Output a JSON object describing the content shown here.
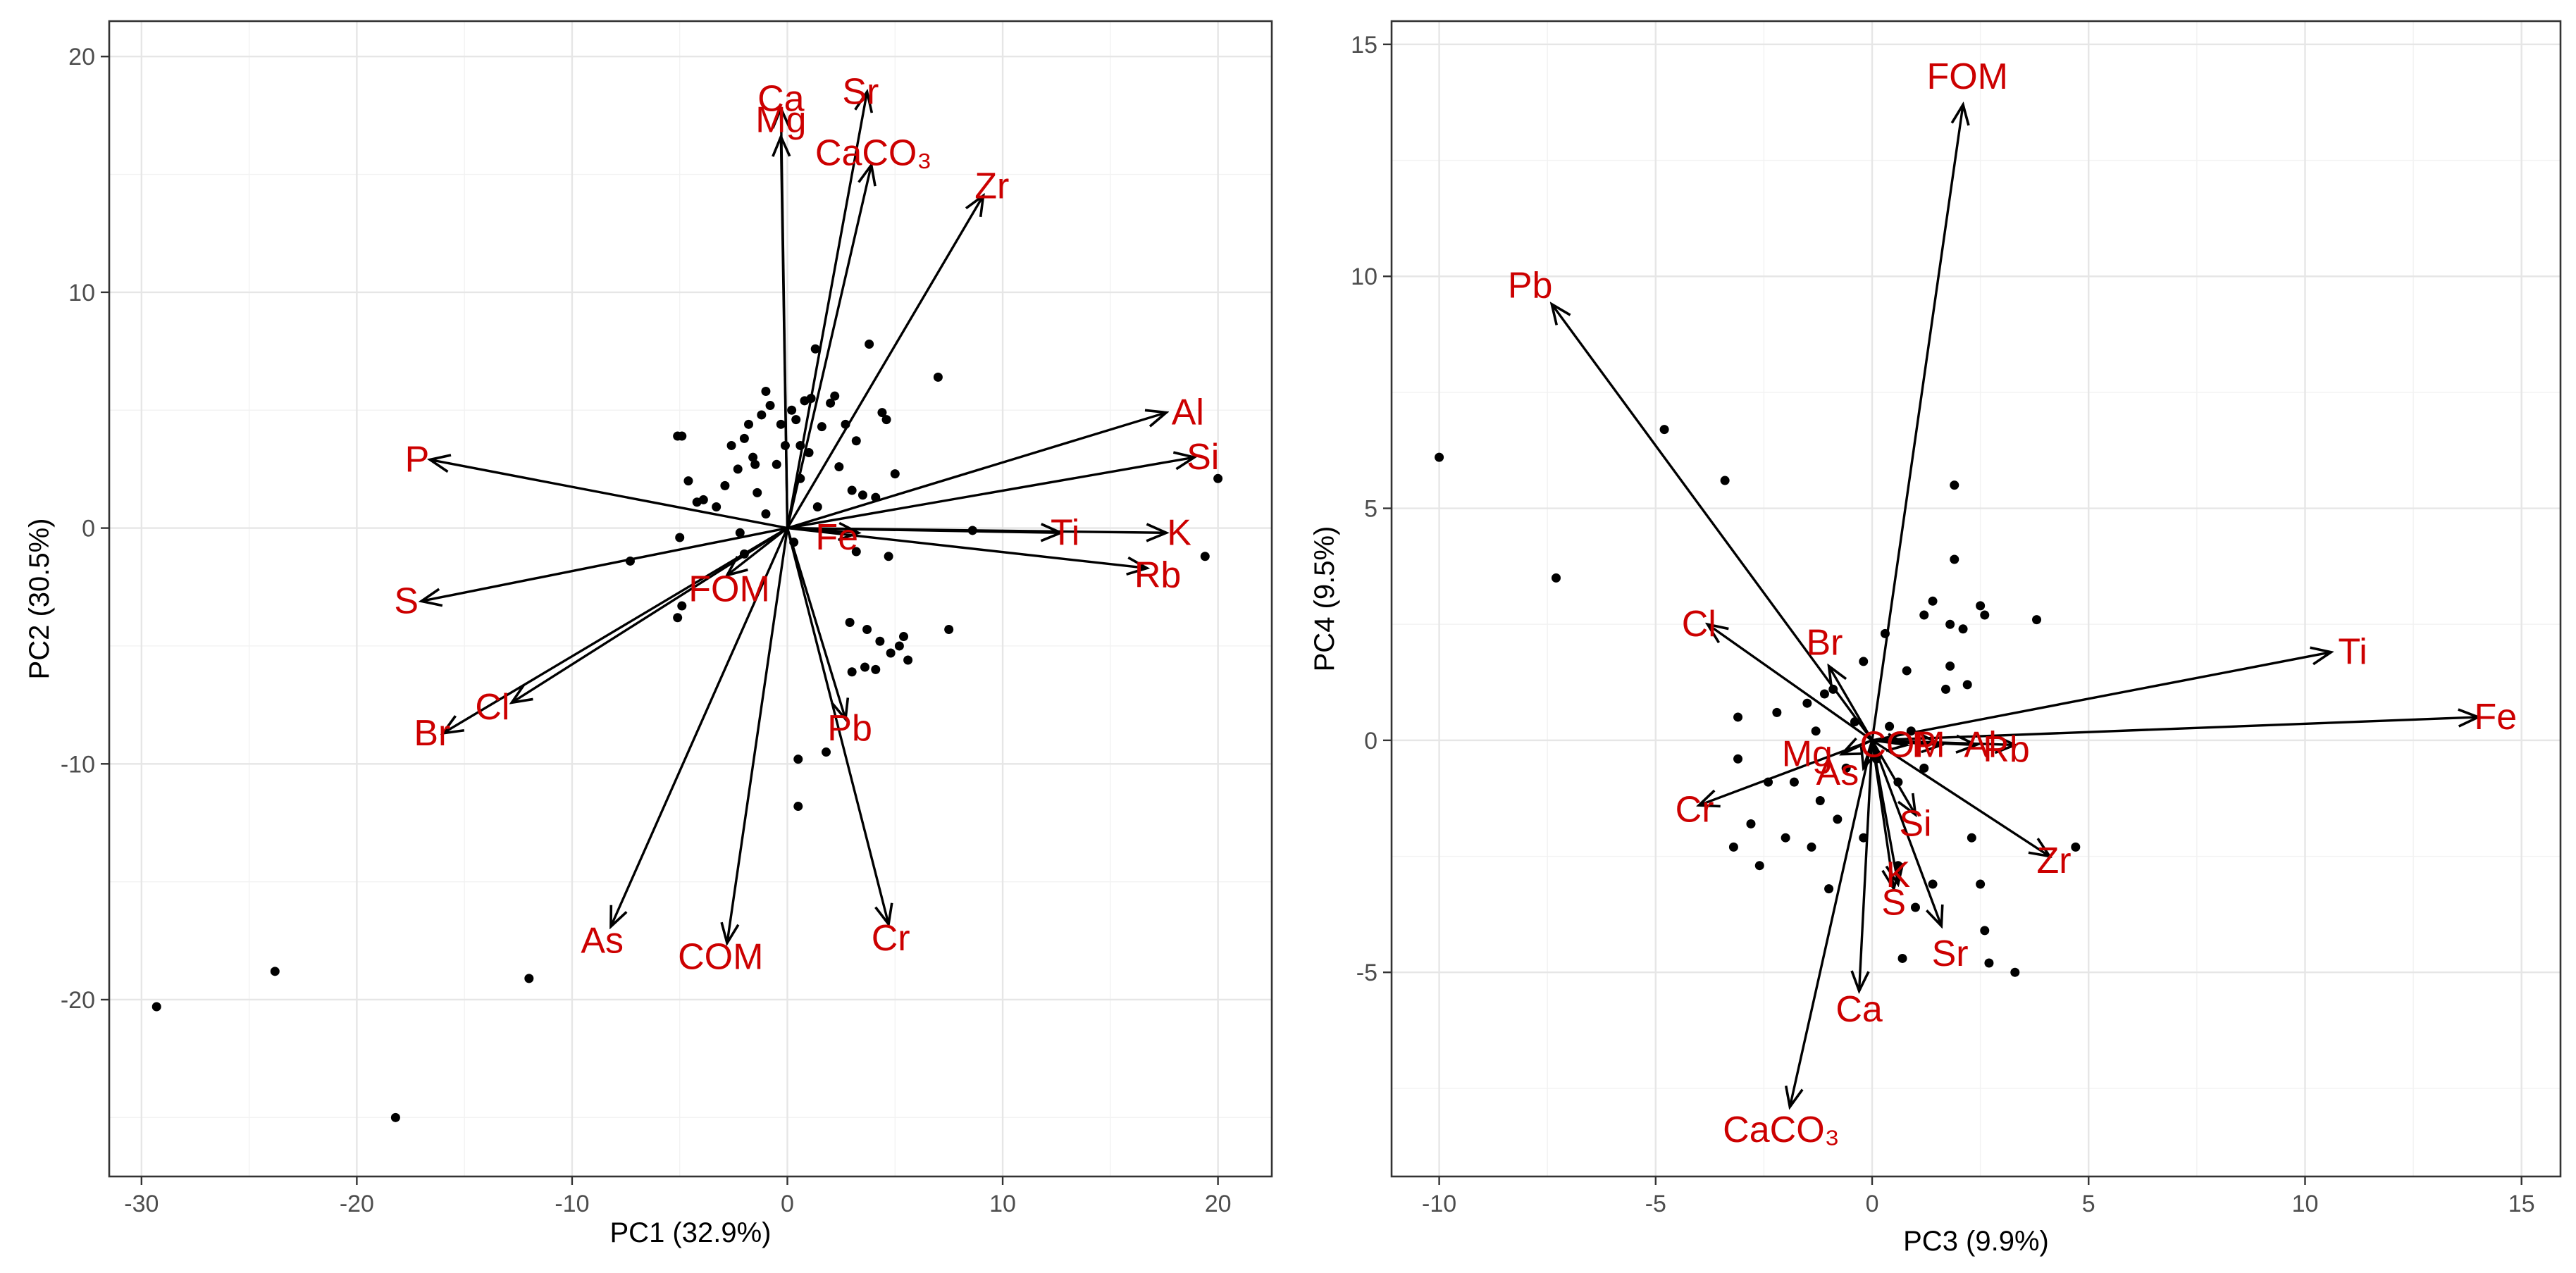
{
  "chart_data": [
    {
      "type": "scatter",
      "subtype": "pca-biplot",
      "xlabel": "PC1 (32.9%)",
      "ylabel": "PC2 (30.5%)",
      "xlim": [
        -31.5,
        22.5
      ],
      "ylim": [
        -27.5,
        21.5
      ],
      "xticks": [
        -30,
        -20,
        -10,
        0,
        10,
        20
      ],
      "yticks": [
        -20,
        -10,
        0,
        10,
        20
      ],
      "xtick_labels": [
        "-30",
        "-20",
        "-10",
        "0",
        "10",
        "20"
      ],
      "ytick_labels": [
        "-20",
        "-10",
        "0",
        "10",
        "20"
      ],
      "grid": true,
      "label_color": "#cc0000",
      "arrow_color": "#000000",
      "point_color": "#000000",
      "loadings": [
        {
          "name": "Ca",
          "x": -0.3,
          "y": 17.8,
          "label_x": -0.3,
          "label_y": 18.2
        },
        {
          "name": "Mg",
          "x": -0.3,
          "y": 16.6,
          "label_x": -0.3,
          "label_y": 17.3
        },
        {
          "name": "Sr",
          "x": 3.7,
          "y": 18.5,
          "label_x": 3.4,
          "label_y": 18.5
        },
        {
          "name": "CaCO₃",
          "x": 3.9,
          "y": 15.4,
          "label_x": 4.0,
          "label_y": 15.9
        },
        {
          "name": "Zr",
          "x": 9.1,
          "y": 14.1,
          "label_x": 9.5,
          "label_y": 14.5
        },
        {
          "name": "Al",
          "x": 17.6,
          "y": 4.9,
          "label_x": 18.6,
          "label_y": 4.9
        },
        {
          "name": "Si",
          "x": 18.9,
          "y": 3.0,
          "label_x": 19.3,
          "label_y": 3.0
        },
        {
          "name": "P",
          "x": -16.6,
          "y": 2.9,
          "label_x": -17.2,
          "label_y": 2.9
        },
        {
          "name": "Fe",
          "x": 3.3,
          "y": -0.2,
          "label_x": 2.3,
          "label_y": -0.4
        },
        {
          "name": "Ti",
          "x": 12.7,
          "y": -0.2,
          "label_x": 12.9,
          "label_y": -0.2
        },
        {
          "name": "K",
          "x": 17.6,
          "y": -0.2,
          "label_x": 18.2,
          "label_y": -0.2
        },
        {
          "name": "Rb",
          "x": 16.7,
          "y": -1.7,
          "label_x": 17.2,
          "label_y": -2.0
        },
        {
          "name": "FOM",
          "x": -2.8,
          "y": -2.0,
          "label_x": -2.7,
          "label_y": -2.6
        },
        {
          "name": "S",
          "x": -17.0,
          "y": -3.1,
          "label_x": -17.7,
          "label_y": -3.1
        },
        {
          "name": "Cl",
          "x": -12.8,
          "y": -7.4,
          "label_x": -13.7,
          "label_y": -7.6
        },
        {
          "name": "Br",
          "x": -16.0,
          "y": -8.7,
          "label_x": -16.5,
          "label_y": -8.7
        },
        {
          "name": "Pb",
          "x": 2.7,
          "y": -8.1,
          "label_x": 2.9,
          "label_y": -8.5
        },
        {
          "name": "As",
          "x": -8.2,
          "y": -16.9,
          "label_x": -8.6,
          "label_y": -17.5
        },
        {
          "name": "COM",
          "x": -2.8,
          "y": -17.6,
          "label_x": -3.1,
          "label_y": -18.2
        },
        {
          "name": "Cr",
          "x": 4.7,
          "y": -16.8,
          "label_x": 4.8,
          "label_y": -17.4
        }
      ],
      "scores": [
        {
          "x": -29.3,
          "y": -20.3
        },
        {
          "x": -23.8,
          "y": -18.8
        },
        {
          "x": -18.2,
          "y": -25.0
        },
        {
          "x": -12.0,
          "y": -19.1
        },
        {
          "x": 0.5,
          "y": -11.8
        },
        {
          "x": 0.5,
          "y": -9.8
        },
        {
          "x": 1.8,
          "y": -9.5
        },
        {
          "x": -5.1,
          "y": 3.9
        },
        {
          "x": -4.9,
          "y": 3.9
        },
        {
          "x": -4.6,
          "y": 2.0
        },
        {
          "x": -4.2,
          "y": 1.1
        },
        {
          "x": -3.9,
          "y": 1.2
        },
        {
          "x": -2.6,
          "y": 3.5
        },
        {
          "x": -2.3,
          "y": 2.5
        },
        {
          "x": -2.0,
          "y": 3.8
        },
        {
          "x": -1.8,
          "y": 4.4
        },
        {
          "x": -1.6,
          "y": 3.0
        },
        {
          "x": -1.5,
          "y": 2.7
        },
        {
          "x": -1.2,
          "y": 4.8
        },
        {
          "x": -1.0,
          "y": 5.8
        },
        {
          "x": -0.8,
          "y": 5.2
        },
        {
          "x": -0.5,
          "y": 2.7
        },
        {
          "x": -0.3,
          "y": 4.4
        },
        {
          "x": -0.1,
          "y": 3.5
        },
        {
          "x": 0.2,
          "y": 5.0
        },
        {
          "x": 0.4,
          "y": 4.6
        },
        {
          "x": 0.6,
          "y": 3.5
        },
        {
          "x": 0.8,
          "y": 5.4
        },
        {
          "x": 1.1,
          "y": 5.5
        },
        {
          "x": 1.3,
          "y": 7.6
        },
        {
          "x": 1.6,
          "y": 4.3
        },
        {
          "x": 2.0,
          "y": 5.3
        },
        {
          "x": 2.2,
          "y": 5.6
        },
        {
          "x": 2.7,
          "y": 4.4
        },
        {
          "x": 3.2,
          "y": 3.7
        },
        {
          "x": 3.8,
          "y": 7.8
        },
        {
          "x": 4.4,
          "y": 4.9
        },
        {
          "x": 4.6,
          "y": 4.6
        },
        {
          "x": 5.0,
          "y": 2.3
        },
        {
          "x": 7.0,
          "y": 6.4
        },
        {
          "x": 0.6,
          "y": 2.1
        },
        {
          "x": 1.0,
          "y": 3.2
        },
        {
          "x": 2.4,
          "y": 2.6
        },
        {
          "x": 3.0,
          "y": 1.6
        },
        {
          "x": 3.5,
          "y": 1.4
        },
        {
          "x": 4.1,
          "y": 1.3
        },
        {
          "x": 1.4,
          "y": 0.9
        },
        {
          "x": -1.4,
          "y": 1.5
        },
        {
          "x": -2.9,
          "y": 1.8
        },
        {
          "x": -3.3,
          "y": 0.9
        },
        {
          "x": -5.0,
          "y": -0.4
        },
        {
          "x": -7.3,
          "y": -1.4
        },
        {
          "x": -5.1,
          "y": -3.8
        },
        {
          "x": -4.9,
          "y": -3.3
        },
        {
          "x": -2.0,
          "y": -1.1
        },
        {
          "x": 3.2,
          "y": -1.0
        },
        {
          "x": 4.7,
          "y": -1.2
        },
        {
          "x": 2.9,
          "y": -4.0
        },
        {
          "x": 3.7,
          "y": -4.3
        },
        {
          "x": 3.0,
          "y": -6.1
        },
        {
          "x": 3.6,
          "y": -5.9
        },
        {
          "x": 4.1,
          "y": -6.0
        },
        {
          "x": 4.3,
          "y": -4.8
        },
        {
          "x": 4.8,
          "y": -5.3
        },
        {
          "x": 5.2,
          "y": -5.0
        },
        {
          "x": 5.4,
          "y": -4.6
        },
        {
          "x": 5.6,
          "y": -5.6
        },
        {
          "x": 7.5,
          "y": -4.3
        },
        {
          "x": 8.6,
          "y": -0.1
        },
        {
          "x": 19.4,
          "y": -1.2
        },
        {
          "x": 20.0,
          "y": 2.1
        },
        {
          "x": -2.2,
          "y": -0.2
        },
        {
          "x": -1.0,
          "y": 0.6
        },
        {
          "x": 0.3,
          "y": -0.6
        }
      ]
    },
    {
      "type": "scatter",
      "subtype": "pca-biplot",
      "xlabel": "PC3 (9.9%)",
      "ylabel": "PC4 (9.5%)",
      "xlim": [
        -11.1,
        15.9
      ],
      "ylim": [
        -9.4,
        15.5
      ],
      "xticks": [
        -10,
        -5,
        0,
        5,
        10,
        15
      ],
      "yticks": [
        -5,
        0,
        5,
        10,
        15
      ],
      "xtick_labels": [
        "-10",
        "-5",
        "0",
        "5",
        "10",
        "15"
      ],
      "ytick_labels": [
        "-5",
        "0",
        "5",
        "10",
        "15"
      ],
      "grid": true,
      "label_color": "#cc0000",
      "arrow_color": "#000000",
      "point_color": "#000000",
      "loadings": [
        {
          "name": "FOM",
          "x": 2.1,
          "y": 13.7,
          "label_x": 2.2,
          "label_y": 14.3
        },
        {
          "name": "Pb",
          "x": -7.4,
          "y": 9.4,
          "label_x": -7.9,
          "label_y": 9.8
        },
        {
          "name": "Ti",
          "x": 10.6,
          "y": 1.9,
          "label_x": 11.1,
          "label_y": 1.9
        },
        {
          "name": "Fe",
          "x": 14.0,
          "y": 0.5,
          "label_x": 14.4,
          "label_y": 0.5
        },
        {
          "name": "Cl",
          "x": -3.8,
          "y": 2.5,
          "label_x": -4.0,
          "label_y": 2.5
        },
        {
          "name": "Br",
          "x": -1.0,
          "y": 1.6,
          "label_x": -1.1,
          "label_y": 2.1
        },
        {
          "name": "Mg",
          "x": -0.7,
          "y": -0.3,
          "label_x": -1.5,
          "label_y": -0.3
        },
        {
          "name": "As",
          "x": -0.2,
          "y": -0.6,
          "label_x": -0.8,
          "label_y": -0.7
        },
        {
          "name": "COM",
          "x": 0.8,
          "y": -0.1,
          "label_x": 0.7,
          "label_y": -0.1
        },
        {
          "name": "P",
          "x": 1.6,
          "y": -0.1,
          "label_x": 1.2,
          "label_y": -0.1
        },
        {
          "name": "Al",
          "x": 2.4,
          "y": -0.1,
          "label_x": 2.5,
          "label_y": -0.1
        },
        {
          "name": "Rb",
          "x": 3.3,
          "y": -0.1,
          "label_x": 3.1,
          "label_y": -0.2
        },
        {
          "name": "Cr",
          "x": -4.0,
          "y": -1.4,
          "label_x": -4.1,
          "label_y": -1.5
        },
        {
          "name": "Si",
          "x": 1.0,
          "y": -1.6,
          "label_x": 1.0,
          "label_y": -1.8
        },
        {
          "name": "K",
          "x": 0.6,
          "y": -3.1,
          "label_x": 0.6,
          "label_y": -2.9
        },
        {
          "name": "S",
          "x": 0.5,
          "y": -3.2,
          "label_x": 0.5,
          "label_y": -3.5
        },
        {
          "name": "Zr",
          "x": 4.1,
          "y": -2.5,
          "label_x": 4.2,
          "label_y": -2.6
        },
        {
          "name": "Sr",
          "x": 1.6,
          "y": -4.0,
          "label_x": 1.8,
          "label_y": -4.6
        },
        {
          "name": "Ca",
          "x": -0.3,
          "y": -5.4,
          "label_x": -0.3,
          "label_y": -5.8
        },
        {
          "name": "CaCO₃",
          "x": -1.9,
          "y": -7.9,
          "label_x": -2.1,
          "label_y": -8.4
        }
      ],
      "scores": [
        {
          "x": -10.0,
          "y": 6.1
        },
        {
          "x": -7.3,
          "y": 3.5
        },
        {
          "x": -4.8,
          "y": 6.7
        },
        {
          "x": -3.4,
          "y": 5.6
        },
        {
          "x": 1.9,
          "y": 5.5
        },
        {
          "x": 1.2,
          "y": 2.7
        },
        {
          "x": 1.4,
          "y": 3.0
        },
        {
          "x": 1.8,
          "y": 2.5
        },
        {
          "x": 1.9,
          "y": 3.9
        },
        {
          "x": 2.1,
          "y": 2.4
        },
        {
          "x": 2.5,
          "y": 2.9
        },
        {
          "x": 2.6,
          "y": 2.7
        },
        {
          "x": 3.8,
          "y": 2.6
        },
        {
          "x": 1.8,
          "y": 1.6
        },
        {
          "x": 1.7,
          "y": 1.1
        },
        {
          "x": 2.2,
          "y": 1.2
        },
        {
          "x": 0.8,
          "y": 1.5
        },
        {
          "x": 0.3,
          "y": 2.3
        },
        {
          "x": -0.2,
          "y": 1.7
        },
        {
          "x": -0.9,
          "y": 1.1
        },
        {
          "x": -1.1,
          "y": 1.0
        },
        {
          "x": -1.5,
          "y": 0.8
        },
        {
          "x": -1.3,
          "y": 0.2
        },
        {
          "x": -2.2,
          "y": 0.6
        },
        {
          "x": -3.1,
          "y": 0.5
        },
        {
          "x": -3.1,
          "y": -0.4
        },
        {
          "x": -2.4,
          "y": -0.9
        },
        {
          "x": -1.8,
          "y": -0.9
        },
        {
          "x": -1.2,
          "y": -1.3
        },
        {
          "x": -0.8,
          "y": -1.7
        },
        {
          "x": -1.4,
          "y": -2.3
        },
        {
          "x": -2.0,
          "y": -2.1
        },
        {
          "x": -2.6,
          "y": -2.7
        },
        {
          "x": -3.2,
          "y": -2.3
        },
        {
          "x": -2.8,
          "y": -1.8
        },
        {
          "x": -1.0,
          "y": -3.2
        },
        {
          "x": -0.2,
          "y": -2.1
        },
        {
          "x": 0.6,
          "y": -2.7
        },
        {
          "x": 1.0,
          "y": -3.6
        },
        {
          "x": 0.7,
          "y": -4.7
        },
        {
          "x": 1.4,
          "y": -3.1
        },
        {
          "x": 2.3,
          "y": -2.1
        },
        {
          "x": 2.5,
          "y": -3.1
        },
        {
          "x": 2.6,
          "y": -4.1
        },
        {
          "x": 2.7,
          "y": -4.8
        },
        {
          "x": 3.3,
          "y": -5.0
        },
        {
          "x": 4.7,
          "y": -2.3
        },
        {
          "x": 0.4,
          "y": 0.3
        },
        {
          "x": 0.1,
          "y": -0.4
        },
        {
          "x": -0.4,
          "y": 0.4
        },
        {
          "x": 0.9,
          "y": 0.2
        },
        {
          "x": 1.2,
          "y": -0.6
        },
        {
          "x": 0.6,
          "y": -0.9
        },
        {
          "x": -0.6,
          "y": -0.6
        }
      ]
    }
  ]
}
